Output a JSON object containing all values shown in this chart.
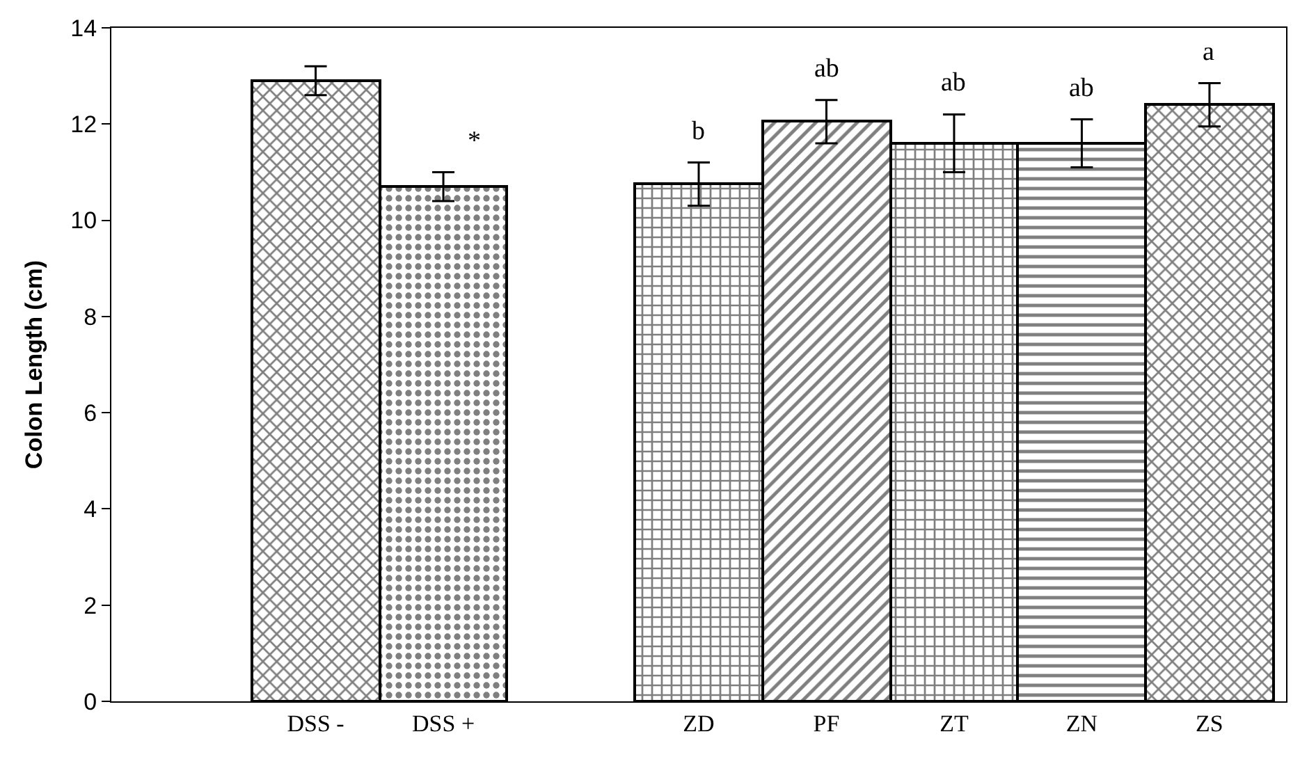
{
  "chart_data": {
    "type": "bar",
    "ylabel": "Colon Length (cm)",
    "categories": [
      "DSS -",
      "DSS +",
      null,
      "ZD",
      "PF",
      "ZT",
      "ZN",
      "ZS"
    ],
    "values": [
      12.9,
      10.7,
      null,
      10.75,
      12.05,
      11.6,
      11.6,
      12.4
    ],
    "errors": [
      0.3,
      0.3,
      null,
      0.45,
      0.45,
      0.6,
      0.5,
      0.45
    ],
    "colors": [
      "#000000",
      "#000000",
      null,
      "#000000",
      "#000000",
      "#000000",
      "#000000",
      "#000000"
    ],
    "ylim": [
      0,
      14
    ],
    "yticks": [
      0,
      2,
      4,
      6,
      8,
      10,
      12,
      14
    ],
    "annotations": [
      "*",
      "b",
      "ab",
      "ab",
      "ab",
      "a"
    ]
  }
}
